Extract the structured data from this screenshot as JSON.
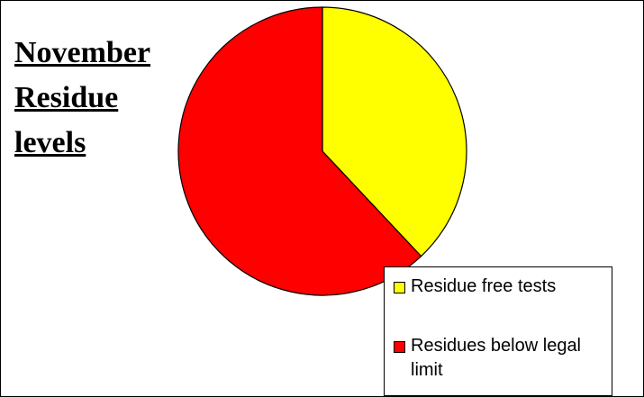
{
  "chart_data": {
    "type": "pie",
    "title": "November Residue levels",
    "categories": [
      "Residue free tests",
      "Residues below legal limit"
    ],
    "values": [
      38,
      62
    ],
    "colors": [
      "#ffff00",
      "#ff0000"
    ],
    "legend": "bottom-right"
  }
}
